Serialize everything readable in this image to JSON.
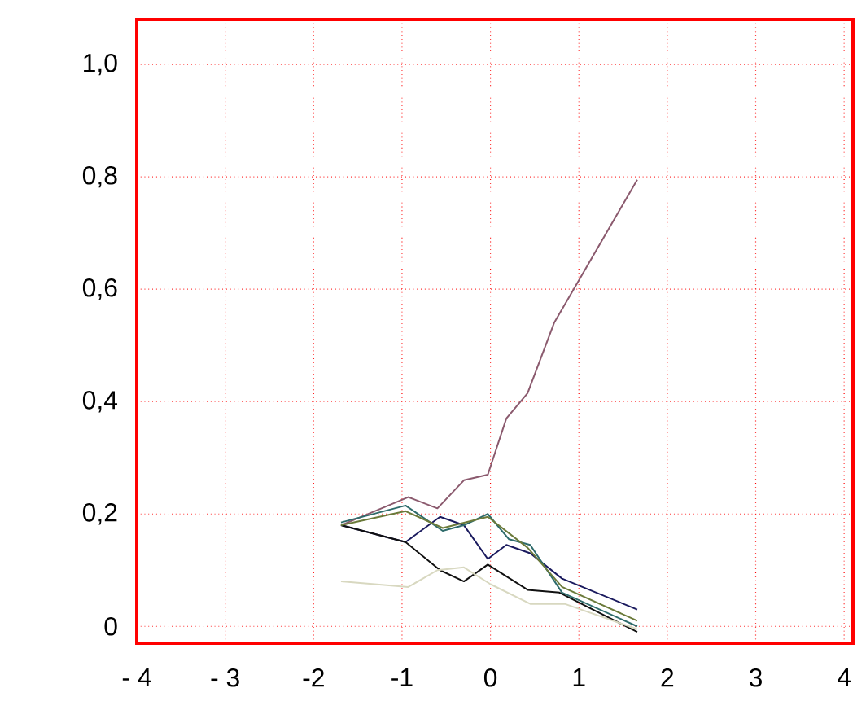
{
  "chart_data": {
    "type": "line",
    "xlim": [
      -4.0,
      4.1
    ],
    "ylim": [
      -0.03,
      1.08
    ],
    "xticks": [
      {
        "value": -4,
        "label": "- 4"
      },
      {
        "value": -3,
        "label": "- 3"
      },
      -2,
      -1,
      0,
      1,
      2,
      3,
      4
    ],
    "yticks": [
      {
        "value": 0,
        "label": "0"
      },
      {
        "value": 0.2,
        "label": "0,2"
      },
      {
        "value": 0.4,
        "label": "0,4"
      },
      {
        "value": 0.6,
        "label": "0,6"
      },
      {
        "value": 0.8,
        "label": "0,8"
      },
      {
        "value": 1.0,
        "label": "1,0"
      }
    ],
    "grid": true,
    "marker": "none",
    "line_style": "solid",
    "series": [
      {
        "color": "#8b5a6e",
        "x": [
          -1.69,
          -0.93,
          -0.6,
          -0.3,
          -0.03,
          0.18,
          0.42,
          0.72,
          0.96,
          1.66
        ],
        "values": [
          0.18,
          0.23,
          0.21,
          0.26,
          0.27,
          0.37,
          0.415,
          0.54,
          0.605,
          0.795
        ]
      },
      {
        "color": "#1a1a5e",
        "x": [
          -1.69,
          -0.96,
          -0.57,
          -0.3,
          -0.03,
          0.18,
          0.45,
          0.81,
          1.66
        ],
        "values": [
          0.18,
          0.15,
          0.195,
          0.18,
          0.12,
          0.145,
          0.13,
          0.085,
          0.03
        ]
      },
      {
        "color": "#111111",
        "x": [
          -1.69,
          -0.96,
          -0.57,
          -0.3,
          -0.03,
          0.42,
          0.78,
          1.66
        ],
        "values": [
          0.18,
          0.15,
          0.1,
          0.08,
          0.11,
          0.065,
          0.06,
          -0.01
        ]
      },
      {
        "color": "#2e6b6b",
        "x": [
          -1.69,
          -0.96,
          -0.54,
          -0.3,
          -0.03,
          0.21,
          0.45,
          0.81,
          1.66
        ],
        "values": [
          0.185,
          0.215,
          0.17,
          0.18,
          0.2,
          0.155,
          0.145,
          0.06,
          0.0
        ]
      },
      {
        "color": "#6b7a3a",
        "x": [
          -1.69,
          -0.96,
          -0.54,
          -0.03,
          0.42,
          0.81,
          1.66
        ],
        "values": [
          0.18,
          0.205,
          0.175,
          0.195,
          0.14,
          0.07,
          0.01
        ]
      },
      {
        "color": "#d8d8c0",
        "x": [
          -1.69,
          -0.93,
          -0.6,
          -0.3,
          0.0,
          0.45,
          0.84,
          1.66
        ],
        "values": [
          0.08,
          0.07,
          0.1,
          0.105,
          0.075,
          0.04,
          0.04,
          -0.005
        ]
      }
    ]
  }
}
